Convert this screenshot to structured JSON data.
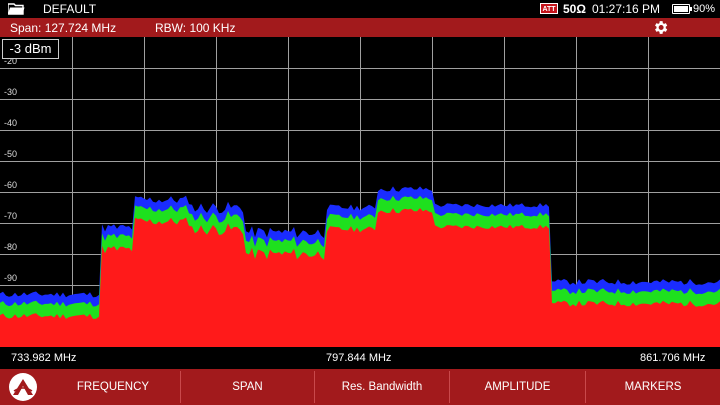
{
  "status": {
    "title": "DEFAULT",
    "att_badge": "ATT",
    "impedance": "50Ω",
    "time": "01:27:16 PM",
    "battery_percent": "90%",
    "battery_level": 0.9
  },
  "info": {
    "span": "Span: 127.724 MHz",
    "rbw": "RBW: 100 KHz"
  },
  "plot": {
    "ref_level": "-3 dBm",
    "y_labels": [
      "-20",
      "-30",
      "-40",
      "-50",
      "-60",
      "-70",
      "-80",
      "-90"
    ]
  },
  "freq": {
    "start": "733.982 MHz",
    "center": "797.844 MHz",
    "stop": "861.706 MHz"
  },
  "softkeys": [
    "FREQUENCY",
    "SPAN",
    "Res. Bandwidth",
    "AMPLITUDE",
    "MARKERS"
  ],
  "colors": {
    "bar_red": "#a21a1c",
    "trace_red": "#ff1a1a",
    "trace_green": "#1ee01e",
    "trace_blue": "#1a2cff"
  }
}
